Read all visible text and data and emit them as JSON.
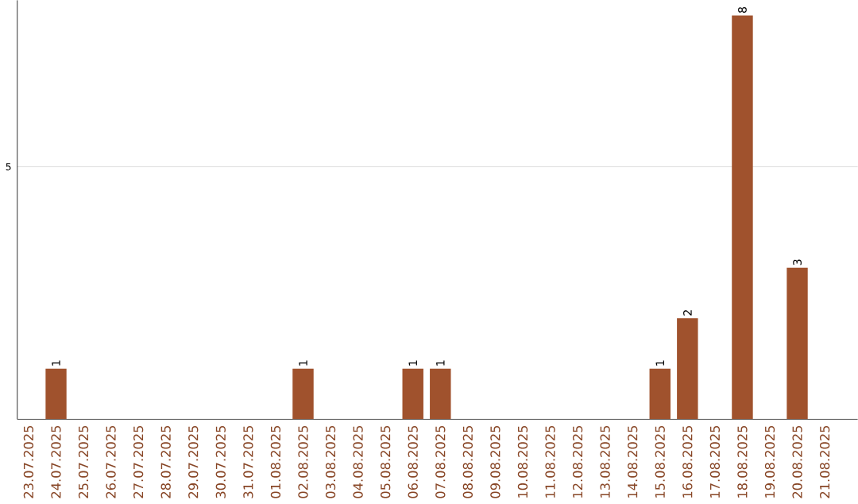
{
  "chart_data": {
    "type": "bar",
    "categories": [
      "23.07.2025",
      "24.07.2025",
      "25.07.2025",
      "26.07.2025",
      "27.07.2025",
      "28.07.2025",
      "29.07.2025",
      "30.07.2025",
      "31.07.2025",
      "01.08.2025",
      "02.08.2025",
      "03.08.2025",
      "04.08.2025",
      "05.08.2025",
      "06.08.2025",
      "07.08.2025",
      "08.08.2025",
      "09.08.2025",
      "10.08.2025",
      "11.08.2025",
      "12.08.2025",
      "13.08.2025",
      "14.08.2025",
      "15.08.2025",
      "16.08.2025",
      "17.08.2025",
      "18.08.2025",
      "19.08.2025",
      "20.08.2025",
      "21.08.2025"
    ],
    "values": [
      0,
      1,
      0,
      0,
      0,
      0,
      0,
      0,
      0,
      0,
      1,
      0,
      0,
      0,
      1,
      1,
      0,
      0,
      0,
      0,
      0,
      0,
      0,
      1,
      2,
      0,
      8,
      0,
      3,
      0
    ],
    "value_labels": [
      null,
      "1",
      null,
      null,
      null,
      null,
      null,
      null,
      null,
      null,
      "1",
      null,
      null,
      null,
      "1",
      "1",
      null,
      null,
      null,
      null,
      null,
      null,
      null,
      "1",
      "2",
      null,
      "8",
      null,
      "3",
      null
    ],
    "color": "#a0522d",
    "ylim": [
      0,
      8.3
    ],
    "yticks": [
      5
    ],
    "grid": "y"
  }
}
